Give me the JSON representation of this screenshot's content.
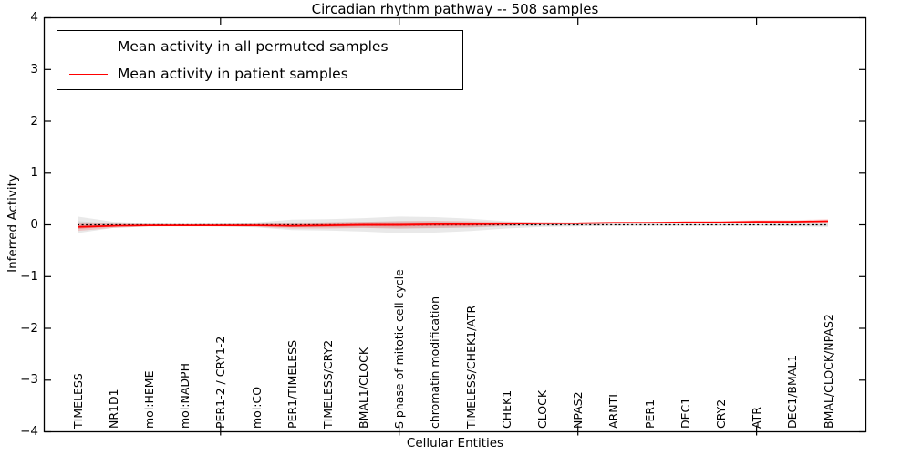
{
  "chart_data": {
    "type": "line",
    "title": "Circadian rhythm pathway -- 508 samples",
    "xlabel": "Cellular Entities",
    "ylabel": "Inferred Activity",
    "ylim": [
      -4,
      4
    ],
    "grid": false,
    "legend_position": "upper left",
    "ytick_values": [
      4,
      3,
      2,
      1,
      0,
      -1,
      -2,
      -3,
      -4
    ],
    "ytick_labels": [
      "4",
      "3",
      "2",
      "1",
      "0",
      "−1",
      "−2",
      "−3",
      "−4"
    ],
    "major_tick_indices": [
      4,
      9,
      14,
      19
    ],
    "categories": [
      "TIMELESS",
      "NR1D1",
      "mol:HEME",
      "mol:NADPH",
      "PER1-2 / CRY1-2",
      "mol:CO",
      "PER1/TIMELESS",
      "TIMELESS/CRY2",
      "BMAL1/CLOCK",
      "S phase of mitotic cell cycle",
      "chromatin modification",
      "TIMELESS/CHEK1/ATR",
      "CHEK1",
      "CLOCK",
      "NPAS2",
      "ARNTL",
      "PER1",
      "DEC1",
      "CRY2",
      "ATR",
      "DEC1/BMAL1",
      "BMAL/CLOCK/NPAS2"
    ],
    "series": [
      {
        "name": "Mean activity in all permuted samples",
        "color": "#000000",
        "style": "dotted",
        "values": [
          0,
          0,
          0,
          0,
          0,
          0,
          0,
          0,
          0,
          0,
          0,
          0,
          0,
          0,
          0,
          0,
          0,
          0,
          0,
          0,
          0,
          0
        ],
        "band": [
          0.16,
          0.06,
          0.03,
          0.02,
          0.03,
          0.05,
          0.1,
          0.11,
          0.13,
          0.16,
          0.15,
          0.12,
          0.07,
          0.04,
          0.03,
          0.02,
          0.02,
          0.02,
          0.02,
          0.02,
          0.03,
          0.04
        ],
        "band_color": "#999999"
      },
      {
        "name": "Mean activity in patient samples",
        "color": "#ff0000",
        "style": "solid",
        "values": [
          -0.04,
          -0.02,
          -0.01,
          -0.01,
          -0.01,
          -0.01,
          -0.02,
          -0.01,
          0.0,
          0.0,
          0.01,
          0.01,
          0.02,
          0.03,
          0.03,
          0.04,
          0.04,
          0.05,
          0.05,
          0.06,
          0.06,
          0.07
        ],
        "band": [
          0.08,
          0.04,
          0.02,
          0.02,
          0.02,
          0.03,
          0.05,
          0.06,
          0.06,
          0.07,
          0.07,
          0.06,
          0.04,
          0.03,
          0.02,
          0.02,
          0.02,
          0.02,
          0.02,
          0.03,
          0.03,
          0.04
        ],
        "band_color": "#ff0000"
      }
    ]
  }
}
